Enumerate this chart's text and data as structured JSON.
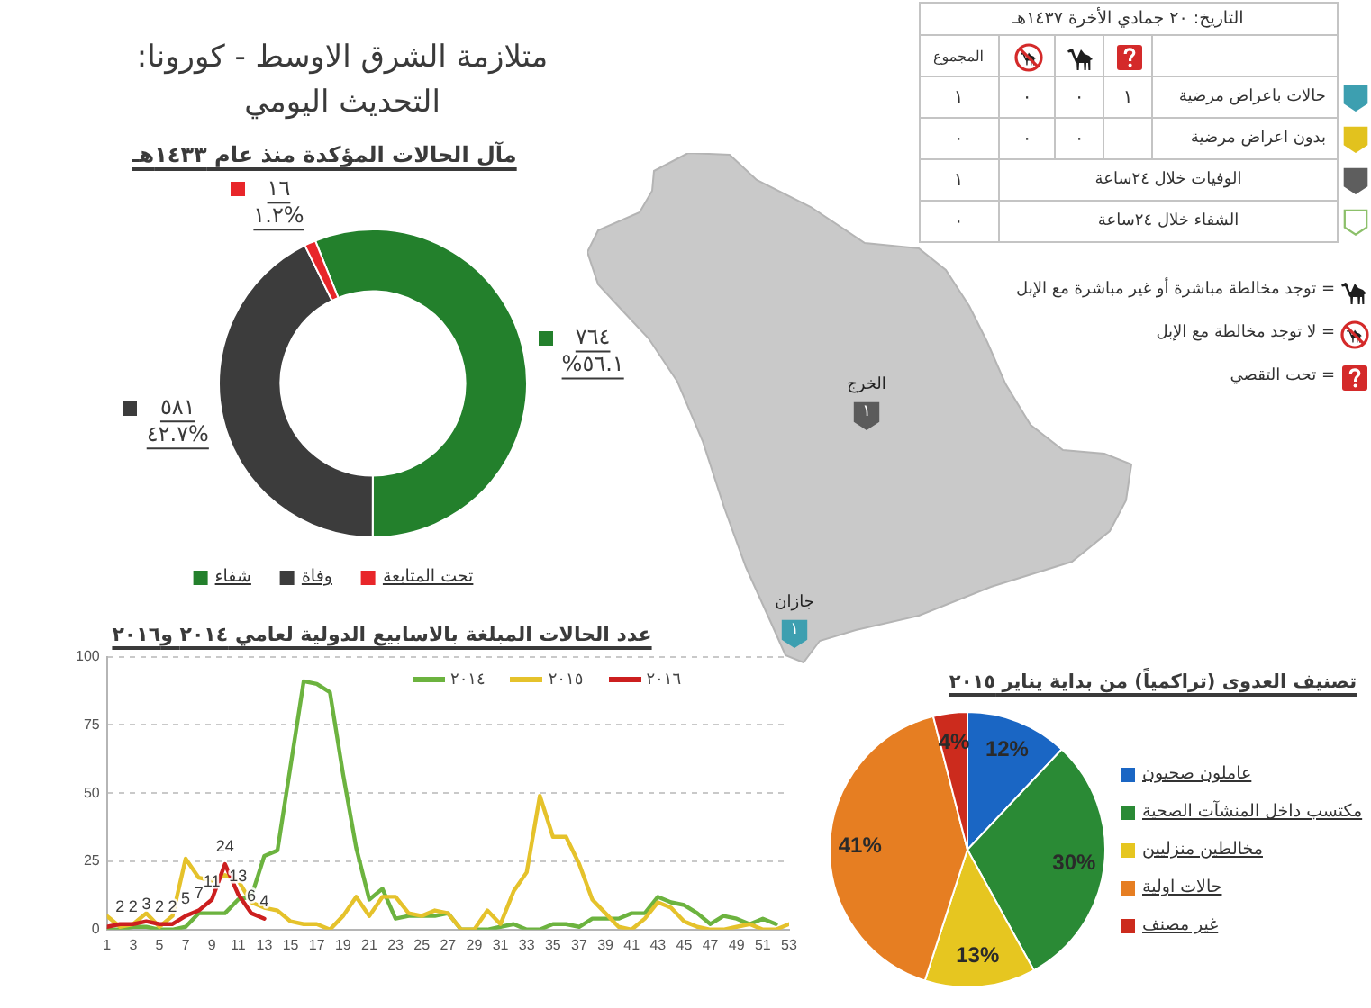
{
  "chart_data": [
    {
      "type": "donut",
      "title": "متلازمة الشرق الاوسط - كورونا:\nالتحديث اليومي",
      "subtitle": "مآل الحالات المؤكدة منذ عام ١٤٣٣هـ",
      "categories": [
        "شفاء",
        "وفاة",
        "تحت المتابعة"
      ],
      "values": [
        764,
        581,
        16
      ],
      "colors": [
        "#23802c",
        "#3c3c3c",
        "#e8262a"
      ],
      "value_labels": [
        "٧٦٤\n%٥٦.١",
        "٥٨١\n٤٢.٧%",
        "١٦\n١.٢%"
      ],
      "legend": "bottom"
    },
    {
      "type": "other",
      "title": "التاريخ: ٢٠ جمادي الأخرة ١٤٣٧هـ",
      "categories": [
        "المجموع",
        null,
        null,
        null
      ],
      "y_categories": [
        "حالات باعراض مرضية",
        "بدون اعراض مرضية",
        "الوفيات خلال ٢٤ساعة",
        "الشفاء خلال ٢٤ساعة"
      ],
      "cell_labels": [
        [
          "١",
          "٠",
          "٠",
          "١"
        ],
        [
          "٠",
          "٠",
          "٠",
          null
        ],
        [
          "١",
          null,
          null,
          null
        ],
        [
          "٠",
          null,
          null,
          null
        ]
      ],
      "annotations": [
        "= توجد مخالطة مباشرة أو غير مباشرة مع الإبل",
        "= لا توجد مخالطة مع الإبل",
        "= تحت التقصي"
      ]
    },
    {
      "type": "other",
      "categories": [
        "الخرج",
        "جازان"
      ],
      "values": [
        1,
        1
      ],
      "value_labels": [
        "١",
        "١"
      ],
      "colors": [
        "#5b5b5b",
        "#3d9fb0"
      ]
    },
    {
      "type": "line",
      "title": "عدد الحالات المبلغة بالاسابيع الدولية لعامي ٢٠١٤ و٢٠١٦",
      "x": [
        1,
        2,
        3,
        4,
        5,
        6,
        7,
        8,
        9,
        10,
        11,
        12,
        13,
        14,
        15,
        16,
        17,
        18,
        19,
        20,
        21,
        22,
        23,
        24,
        25,
        26,
        27,
        28,
        29,
        30,
        31,
        32,
        33,
        34,
        35,
        36,
        37,
        38,
        39,
        40,
        41,
        42,
        43,
        44,
        45,
        46,
        47,
        48,
        49,
        50,
        51,
        52,
        53
      ],
      "xlim": [
        1,
        53
      ],
      "xticks": [
        1,
        3,
        5,
        7,
        9,
        11,
        13,
        15,
        17,
        19,
        21,
        23,
        25,
        27,
        29,
        31,
        33,
        35,
        37,
        39,
        41,
        43,
        45,
        47,
        49,
        51,
        53
      ],
      "ylim": [
        0,
        100
      ],
      "yticks": [
        0,
        25,
        50,
        75,
        100
      ],
      "grid": "y",
      "legend": "top right",
      "marker": "none",
      "series": [
        {
          "name": "٢٠١٤",
          "color": "#6cb33f",
          "values": [
            0,
            0,
            1,
            1,
            0,
            0,
            1,
            6,
            6,
            6,
            11,
            12,
            27,
            29,
            60,
            91,
            90,
            87,
            57,
            30,
            11,
            15,
            4,
            5,
            5,
            5,
            6,
            0,
            0,
            0,
            1,
            2,
            0,
            0,
            2,
            2,
            1,
            4,
            4,
            4,
            6,
            6,
            12,
            10,
            9,
            6,
            2,
            5,
            4,
            2,
            4,
            2,
            null
          ]
        },
        {
          "name": "٢٠١٥",
          "color": "#e5c22b",
          "values": [
            5,
            1,
            2,
            6,
            1,
            5,
            26,
            19,
            18,
            20,
            18,
            10,
            8,
            7,
            3,
            2,
            2,
            0,
            5,
            12,
            5,
            12,
            12,
            6,
            5,
            7,
            6,
            0,
            0,
            7,
            2,
            14,
            21,
            49,
            34,
            34,
            24,
            11,
            6,
            1,
            0,
            4,
            10,
            8,
            3,
            1,
            0,
            0,
            1,
            2,
            0,
            0,
            2
          ]
        },
        {
          "name": "٢٠١٦",
          "color": "#cc1f1f",
          "x": [
            1,
            2,
            3,
            4,
            5,
            6,
            7,
            8,
            9,
            10,
            11,
            12,
            13
          ],
          "values": [
            1,
            2,
            2,
            3,
            2,
            2,
            5,
            7,
            11,
            24,
            13,
            6,
            4
          ],
          "value_labels": [
            null,
            "2",
            "2",
            "3",
            "2",
            "2",
            "5",
            "7",
            "11",
            "24",
            "13",
            "6",
            "4"
          ]
        }
      ]
    },
    {
      "type": "pie",
      "title": "تصنيف العدوى (تراكمياً) من بداية يناير ٢٠١٥",
      "categories": [
        "عاملون صحيون",
        "مكتسب داخل المنشآت الصحية",
        "مخالطين منزليين",
        "حالات اولية",
        "غير مصنف"
      ],
      "values": [
        12,
        30,
        13,
        41,
        4
      ],
      "colors": [
        "#1a66c4",
        "#2a8a35",
        "#e6c620",
        "#e67e22",
        "#cc2b1d"
      ],
      "value_labels": [
        "12%",
        "30%",
        "13%",
        "41%",
        "4%"
      ],
      "legend": "right"
    }
  ]
}
